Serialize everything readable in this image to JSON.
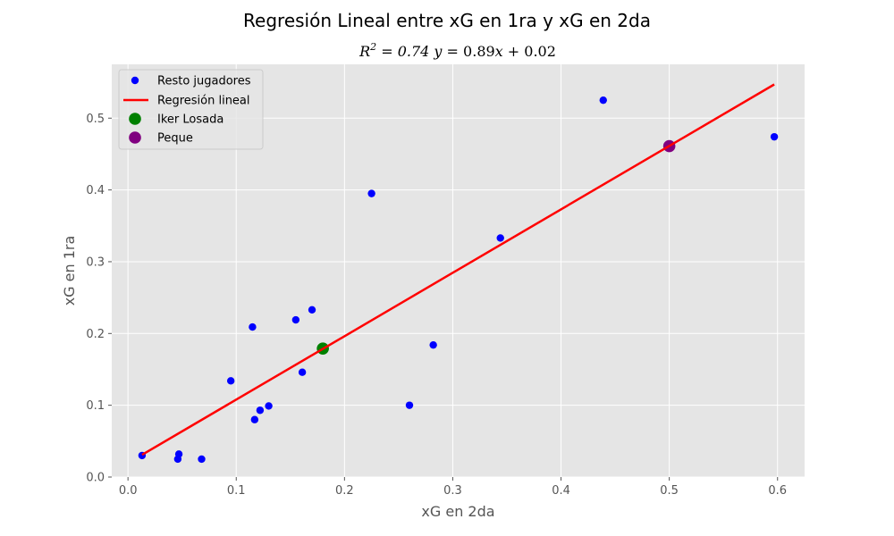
{
  "chart_data": {
    "type": "scatter",
    "title": "Regresión Lineal entre xG en 1ra y xG en 2da",
    "subtitle": "R² = 0.74 y = 0.89x + 0.02",
    "xlabel": "xG en 2da",
    "ylabel": "xG en 1ra",
    "xlim": [
      -0.015,
      0.625
    ],
    "ylim": [
      0.0,
      0.575
    ],
    "xticks": [
      0.0,
      0.1,
      0.2,
      0.3,
      0.4,
      0.5,
      0.6
    ],
    "xtick_labels": [
      "0.0",
      "0.1",
      "0.2",
      "0.3",
      "0.4",
      "0.5",
      "0.6"
    ],
    "yticks": [
      0.0,
      0.1,
      0.2,
      0.3,
      0.4,
      0.5
    ],
    "ytick_labels": [
      "0.0",
      "0.1",
      "0.2",
      "0.3",
      "0.4",
      "0.5"
    ],
    "grid": true,
    "legend_position": "top-left",
    "background_color": "#e5e5e5",
    "series": [
      {
        "name": "Resto jugadores",
        "kind": "scatter",
        "color": "#0000ff",
        "points": [
          [
            0.013,
            0.03
          ],
          [
            0.046,
            0.025
          ],
          [
            0.047,
            0.032
          ],
          [
            0.068,
            0.025
          ],
          [
            0.095,
            0.134
          ],
          [
            0.115,
            0.209
          ],
          [
            0.117,
            0.08
          ],
          [
            0.122,
            0.093
          ],
          [
            0.13,
            0.099
          ],
          [
            0.155,
            0.219
          ],
          [
            0.161,
            0.146
          ],
          [
            0.17,
            0.233
          ],
          [
            0.225,
            0.395
          ],
          [
            0.26,
            0.1
          ],
          [
            0.282,
            0.184
          ],
          [
            0.344,
            0.333
          ],
          [
            0.439,
            0.525
          ],
          [
            0.597,
            0.474
          ]
        ]
      },
      {
        "name": "Regresión lineal",
        "kind": "line",
        "color": "#ff0000",
        "points": [
          [
            0.013,
            0.031
          ],
          [
            0.597,
            0.547
          ]
        ]
      },
      {
        "name": "Iker Losada",
        "kind": "scatter",
        "color": "#008000",
        "points": [
          [
            0.18,
            0.179
          ]
        ]
      },
      {
        "name": "Peque",
        "kind": "scatter",
        "color": "#800080",
        "points": [
          [
            0.5,
            0.461
          ]
        ]
      }
    ]
  }
}
